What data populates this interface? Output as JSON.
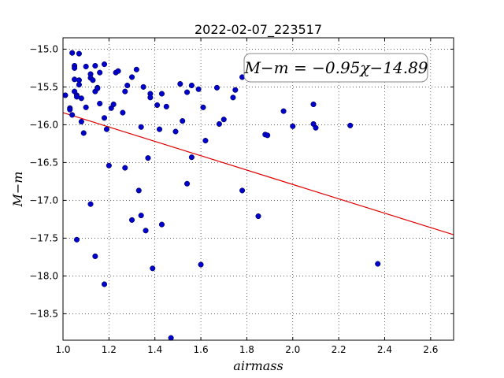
{
  "chart_data": {
    "type": "scatter",
    "title": "2022-02-07_223517",
    "xlabel": "airmass",
    "ylabel": "M−m",
    "xlim": [
      1.0,
      2.7
    ],
    "ylim": [
      -18.85,
      -14.85
    ],
    "y_inverted": true,
    "grid": true,
    "xticks": [
      1.0,
      1.2,
      1.4,
      1.6,
      1.8,
      2.0,
      2.2,
      2.4,
      2.6
    ],
    "xtick_labels": [
      "1.0",
      "1.2",
      "1.4",
      "1.6",
      "1.8",
      "2.0",
      "2.2",
      "2.4",
      "2.6"
    ],
    "yticks": [
      -15.0,
      -15.5,
      -16.0,
      -16.5,
      -17.0,
      -17.5,
      -18.0,
      -18.5
    ],
    "ytick_labels": [
      "−15.0",
      "−15.5",
      "−16.0",
      "−16.5",
      "−17.0",
      "−17.5",
      "−18.0",
      "−18.5"
    ],
    "annotation": "M−m = −0.95χ−14.89",
    "fit_line": {
      "slope": -0.95,
      "intercept": -14.89,
      "color": "#e00000"
    },
    "marker_color": "#0000cc",
    "points": [
      [
        1.01,
        -15.61
      ],
      [
        1.03,
        -15.78
      ],
      [
        1.03,
        -15.8
      ],
      [
        1.04,
        -15.05
      ],
      [
        1.04,
        -15.87
      ],
      [
        1.05,
        -15.22
      ],
      [
        1.05,
        -15.25
      ],
      [
        1.05,
        -15.4
      ],
      [
        1.05,
        -15.56
      ],
      [
        1.06,
        -15.61
      ],
      [
        1.06,
        -15.63
      ],
      [
        1.06,
        -17.52
      ],
      [
        1.07,
        -15.06
      ],
      [
        1.07,
        -15.41
      ],
      [
        1.07,
        -15.47
      ],
      [
        1.08,
        -15.65
      ],
      [
        1.08,
        -15.96
      ],
      [
        1.09,
        -16.11
      ],
      [
        1.1,
        -15.23
      ],
      [
        1.1,
        -15.77
      ],
      [
        1.12,
        -15.33
      ],
      [
        1.12,
        -15.38
      ],
      [
        1.12,
        -17.05
      ],
      [
        1.13,
        -15.41
      ],
      [
        1.14,
        -15.22
      ],
      [
        1.14,
        -15.56
      ],
      [
        1.14,
        -17.74
      ],
      [
        1.15,
        -15.51
      ],
      [
        1.15,
        -15.52
      ],
      [
        1.16,
        -15.31
      ],
      [
        1.16,
        -15.72
      ],
      [
        1.18,
        -15.2
      ],
      [
        1.18,
        -15.91
      ],
      [
        1.18,
        -18.11
      ],
      [
        1.19,
        -16.06
      ],
      [
        1.2,
        -16.54
      ],
      [
        1.21,
        -15.78
      ],
      [
        1.22,
        -15.73
      ],
      [
        1.23,
        -15.31
      ],
      [
        1.24,
        -15.29
      ],
      [
        1.26,
        -15.84
      ],
      [
        1.27,
        -15.56
      ],
      [
        1.27,
        -16.57
      ],
      [
        1.28,
        -15.48
      ],
      [
        1.3,
        -15.37
      ],
      [
        1.3,
        -17.26
      ],
      [
        1.32,
        -15.27
      ],
      [
        1.33,
        -16.87
      ],
      [
        1.34,
        -16.03
      ],
      [
        1.34,
        -17.2
      ],
      [
        1.35,
        -15.5
      ],
      [
        1.36,
        -17.4
      ],
      [
        1.37,
        -16.44
      ],
      [
        1.38,
        -15.59
      ],
      [
        1.38,
        -15.64
      ],
      [
        1.39,
        -17.9
      ],
      [
        1.41,
        -15.74
      ],
      [
        1.42,
        -16.06
      ],
      [
        1.43,
        -15.59
      ],
      [
        1.43,
        -17.32
      ],
      [
        1.45,
        -15.76
      ],
      [
        1.47,
        -18.82
      ],
      [
        1.49,
        -16.09
      ],
      [
        1.51,
        -15.46
      ],
      [
        1.52,
        -15.95
      ],
      [
        1.54,
        -16.78
      ],
      [
        1.54,
        -15.57
      ],
      [
        1.56,
        -15.48
      ],
      [
        1.56,
        -16.43
      ],
      [
        1.59,
        -15.53
      ],
      [
        1.6,
        -17.85
      ],
      [
        1.61,
        -15.77
      ],
      [
        1.62,
        -16.21
      ],
      [
        1.67,
        -15.51
      ],
      [
        1.68,
        -15.99
      ],
      [
        1.7,
        -15.93
      ],
      [
        1.74,
        -15.64
      ],
      [
        1.75,
        -15.54
      ],
      [
        1.78,
        -15.37
      ],
      [
        1.78,
        -16.87
      ],
      [
        1.85,
        -17.21
      ],
      [
        1.88,
        -16.13
      ],
      [
        1.89,
        -16.14
      ],
      [
        1.96,
        -15.82
      ],
      [
        2.0,
        -16.02
      ],
      [
        2.09,
        -15.99
      ],
      [
        2.09,
        -15.73
      ],
      [
        2.1,
        -16.04
      ],
      [
        2.25,
        -16.01
      ],
      [
        2.37,
        -17.84
      ]
    ]
  }
}
